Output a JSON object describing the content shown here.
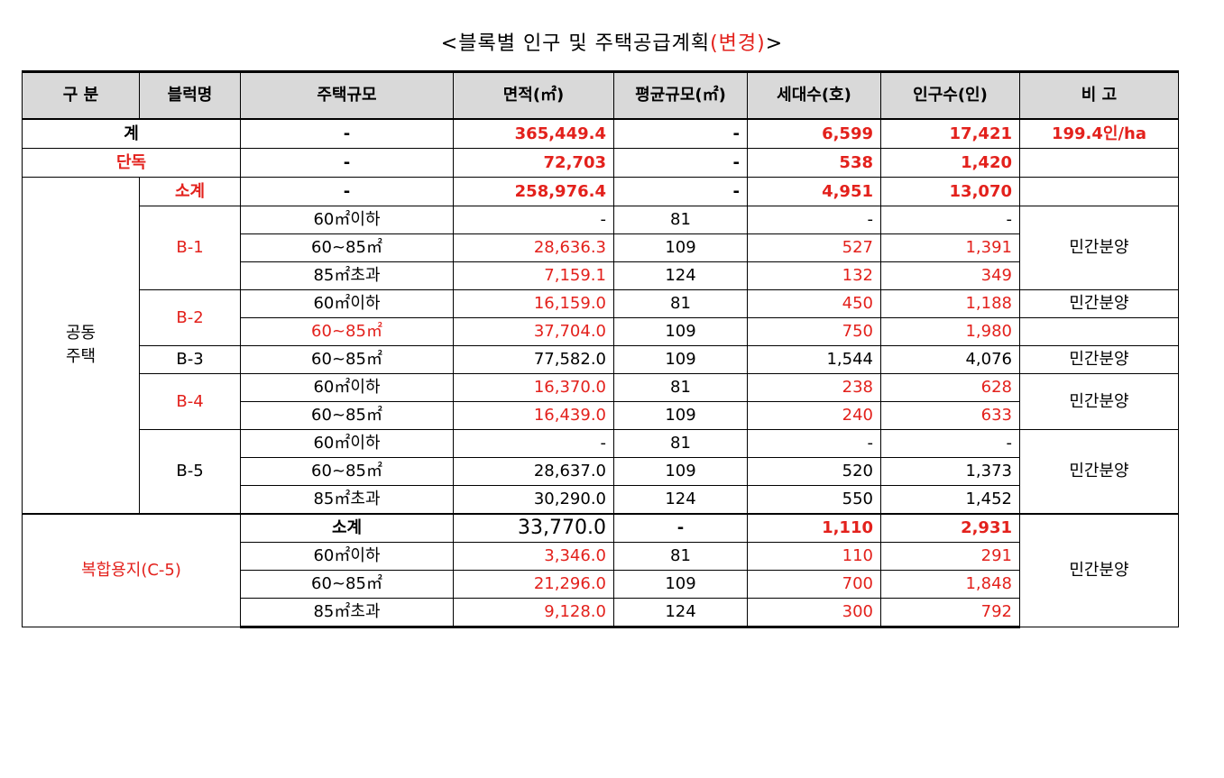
{
  "title": {
    "main": "<블록별 인구 및 주택공급계획",
    "changed": "(변경)",
    "end": ">"
  },
  "headers": {
    "gubun": "구 분",
    "block": "블럭명",
    "size": "주택규모",
    "area": "면적(㎡)",
    "avg": "평균규모(㎡)",
    "households": "세대수(호)",
    "population": "인구수(인)",
    "note": "비 고"
  },
  "total": {
    "label": "계",
    "size": "-",
    "area": "365,449.4",
    "avg": "-",
    "households": "6,599",
    "population": "17,421",
    "note": "199.4인/ha"
  },
  "detached": {
    "label": "단독",
    "size": "-",
    "area": "72,703",
    "avg": "-",
    "households": "538",
    "population": "1,420"
  },
  "apartment": {
    "label_line1": "공동",
    "label_line2": "주택",
    "subtotal": {
      "label": "소계",
      "size": "-",
      "area": "258,976.4",
      "avg": "-",
      "households": "4,951",
      "population": "13,070"
    },
    "b1": {
      "name": "B-1",
      "note": "민간분양",
      "rows": [
        {
          "size": "60㎡이하",
          "area": "-",
          "avg": "81",
          "households": "-",
          "population": "-"
        },
        {
          "size": "60~85㎡",
          "area": "28,636.3",
          "avg": "109",
          "households": "527",
          "population": "1,391"
        },
        {
          "size": "85㎡초과",
          "area": "7,159.1",
          "avg": "124",
          "households": "132",
          "population": "349"
        }
      ]
    },
    "b2": {
      "name": "B-2",
      "note": "민간분양",
      "rows": [
        {
          "size": "60㎡이하",
          "area": "16,159.0",
          "avg": "81",
          "households": "450",
          "population": "1,188"
        },
        {
          "size": "60~85㎡",
          "area": "37,704.0",
          "avg": "109",
          "households": "750",
          "population": "1,980"
        }
      ]
    },
    "b3": {
      "name": "B-3",
      "note": "민간분양",
      "rows": [
        {
          "size": "60~85㎡",
          "area": "77,582.0",
          "avg": "109",
          "households": "1,544",
          "population": "4,076"
        }
      ]
    },
    "b4": {
      "name": "B-4",
      "note": "민간분양",
      "rows": [
        {
          "size": "60㎡이하",
          "area": "16,370.0",
          "avg": "81",
          "households": "238",
          "population": "628"
        },
        {
          "size": "60~85㎡",
          "area": "16,439.0",
          "avg": "109",
          "households": "240",
          "population": "633"
        }
      ]
    },
    "b5": {
      "name": "B-5",
      "note": "민간분양",
      "rows": [
        {
          "size": "60㎡이하",
          "area": "-",
          "avg": "81",
          "households": "-",
          "population": "-"
        },
        {
          "size": "60~85㎡",
          "area": "28,637.0",
          "avg": "109",
          "households": "520",
          "population": "1,373"
        },
        {
          "size": "85㎡초과",
          "area": "30,290.0",
          "avg": "124",
          "households": "550",
          "population": "1,452"
        }
      ]
    }
  },
  "mixed": {
    "label": "복합용지(C-5)",
    "note": "민간분양",
    "subtotal": {
      "label": "소계",
      "area": "33,770.0",
      "avg": "-",
      "households": "1,110",
      "population": "2,931"
    },
    "rows": [
      {
        "size": "60㎡이하",
        "area": "3,346.0",
        "avg": "81",
        "households": "110",
        "population": "291"
      },
      {
        "size": "60~85㎡",
        "area": "21,296.0",
        "avg": "109",
        "households": "700",
        "population": "1,848"
      },
      {
        "size": "85㎡초과",
        "area": "9,128.0",
        "avg": "124",
        "households": "300",
        "population": "792"
      }
    ]
  },
  "colors": {
    "accent_red": "#e3211c",
    "header_bg": "#d9d9d9"
  }
}
